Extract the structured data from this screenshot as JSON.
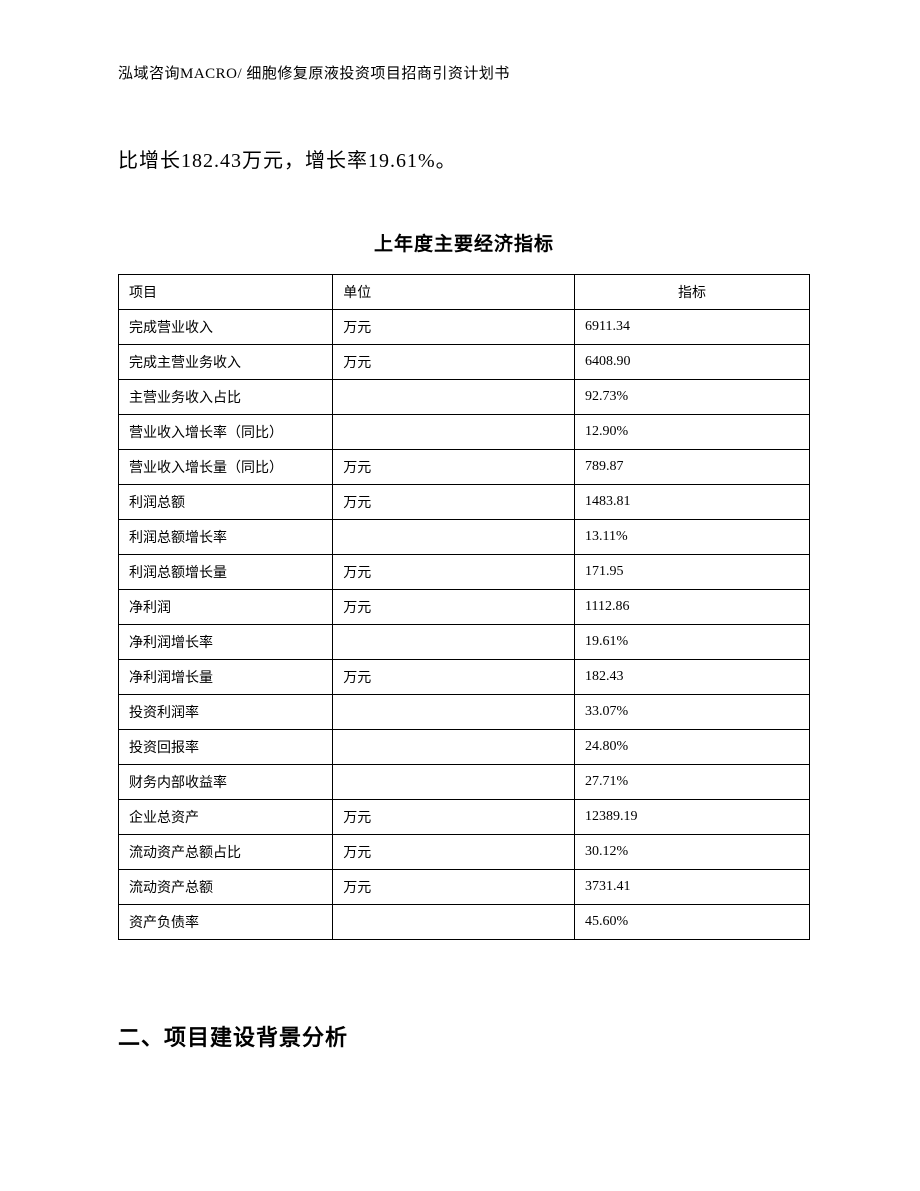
{
  "header": {
    "text": "泓域咨询MACRO/ 细胞修复原液投资项目招商引资计划书"
  },
  "body_paragraph": "比增长182.43万元，增长率19.61%。",
  "table": {
    "title": "上年度主要经济指标",
    "columns": [
      "项目",
      "单位",
      "指标"
    ],
    "rows": [
      [
        "完成营业收入",
        "万元",
        "6911.34"
      ],
      [
        "完成主营业务收入",
        "万元",
        "6408.90"
      ],
      [
        "主营业务收入占比",
        "",
        "92.73%"
      ],
      [
        "营业收入增长率（同比）",
        "",
        "12.90%"
      ],
      [
        "营业收入增长量（同比）",
        "万元",
        "789.87"
      ],
      [
        "利润总额",
        "万元",
        "1483.81"
      ],
      [
        "利润总额增长率",
        "",
        "13.11%"
      ],
      [
        "利润总额增长量",
        "万元",
        "171.95"
      ],
      [
        "净利润",
        "万元",
        "1112.86"
      ],
      [
        "净利润增长率",
        "",
        "19.61%"
      ],
      [
        "净利润增长量",
        "万元",
        "182.43"
      ],
      [
        "投资利润率",
        "",
        "33.07%"
      ],
      [
        "投资回报率",
        "",
        "24.80%"
      ],
      [
        "财务内部收益率",
        "",
        "27.71%"
      ],
      [
        "企业总资产",
        "万元",
        "12389.19"
      ],
      [
        "流动资产总额占比",
        "万元",
        "30.12%"
      ],
      [
        "流动资产总额",
        "万元",
        "3731.41"
      ],
      [
        "资产负债率",
        "",
        "45.60%"
      ]
    ]
  },
  "section_heading": "二、项目建设背景分析"
}
